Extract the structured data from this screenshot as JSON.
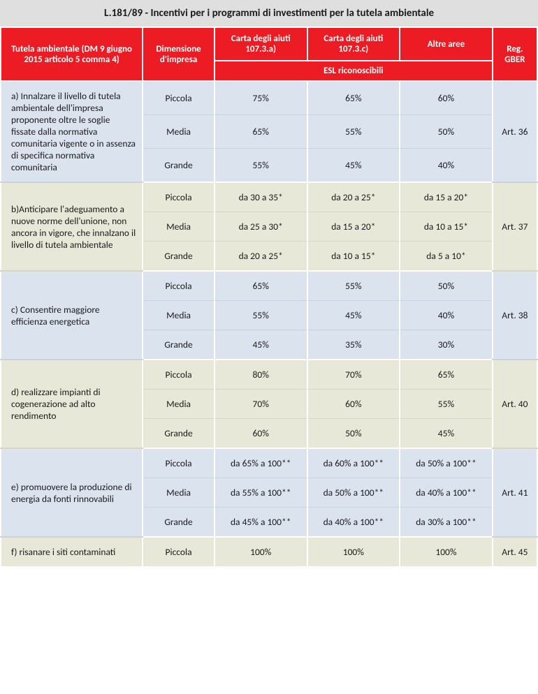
{
  "title": "L.181/89 - Incentivi per i programmi di investimenti per la tutela ambientale",
  "headers": {
    "col1": "Tutela ambientale (DM 9 giugno 2015 articolo 5 comma 4)",
    "col2": "Dimensione d'impresa",
    "col3": "Carta degli aiuti 107.3.a)",
    "col4": "Carta degli aiuti 107.3.c)",
    "col5": "Altre aree",
    "col6": "Reg. GBER",
    "sub": "ESL riconoscibili"
  },
  "sizes": {
    "p": "Piccola",
    "m": "Media",
    "g": "Grande"
  },
  "groups": [
    {
      "desc": "a) Innalzare il livello di tutela ambientale dell'impresa proponente oltre le soglie fissate dalla normativa comunitaria vigente o in assenza di specifica normativa comunitaria",
      "reg": "Art. 36",
      "bg": "blue",
      "rows": [
        {
          "size": "p",
          "v1": "75%",
          "v2": "65%",
          "v3": "60%"
        },
        {
          "size": "m",
          "v1": "65%",
          "v2": "55%",
          "v3": "50%"
        },
        {
          "size": "g",
          "v1": "55%",
          "v2": "45%",
          "v3": "40%"
        }
      ]
    },
    {
      "desc": "b)Anticipare l'adeguamento a nuove norme dell'unione, non ancora in vigore, che innalzano il livello di tutela ambientale",
      "reg": "Art. 37",
      "bg": "olive",
      "rows": [
        {
          "size": "p",
          "v1": "da 30 a 35*",
          "v2": "da 20 a 25*",
          "v3": "da 15 a 20*"
        },
        {
          "size": "m",
          "v1": "da 25 a 30*",
          "v2": "da 15 a 20*",
          "v3": "da 10 a 15*"
        },
        {
          "size": "g",
          "v1": "da 20 a 25*",
          "v2": "da 10 a 15*",
          "v3": "da 5 a 10*"
        }
      ]
    },
    {
      "desc": "c) Consentire maggiore efficienza energetica",
      "reg": "Art. 38",
      "bg": "blue",
      "rows": [
        {
          "size": "p",
          "v1": "65%",
          "v2": "55%",
          "v3": "50%"
        },
        {
          "size": "m",
          "v1": "55%",
          "v2": "45%",
          "v3": "40%"
        },
        {
          "size": "g",
          "v1": "45%",
          "v2": "35%",
          "v3": "30%"
        }
      ]
    },
    {
      "desc": "d) realizzare impianti di cogenerazione ad alto rendimento",
      "reg": "Art. 40",
      "bg": "olive",
      "rows": [
        {
          "size": "p",
          "v1": "80%",
          "v2": "70%",
          "v3": "65%"
        },
        {
          "size": "m",
          "v1": "70%",
          "v2": "60%",
          "v3": "55%"
        },
        {
          "size": "g",
          "v1": "60%",
          "v2": "50%",
          "v3": "45%"
        }
      ]
    },
    {
      "desc": "e) promuovere la produzione di energia da fonti rinnovabili",
      "reg": "Art. 41",
      "bg": "blue",
      "rows": [
        {
          "size": "p",
          "v1": "da 65% a 100**",
          "v2": "da 60% a 100**",
          "v3": "da 50% a 100**"
        },
        {
          "size": "m",
          "v1": "da 55% a 100**",
          "v2": "da 50% a 100**",
          "v3": "da 40% a 100**"
        },
        {
          "size": "g",
          "v1": "da 45% a 100**",
          "v2": "da 40% a 100**",
          "v3": "da 30% a 100**"
        }
      ]
    },
    {
      "desc": "f) risanare i siti contaminati",
      "reg": "Art. 45",
      "bg": "olive",
      "rows": [
        {
          "size": "p",
          "v1": "100%",
          "v2": "100%",
          "v3": "100%"
        }
      ]
    }
  ]
}
